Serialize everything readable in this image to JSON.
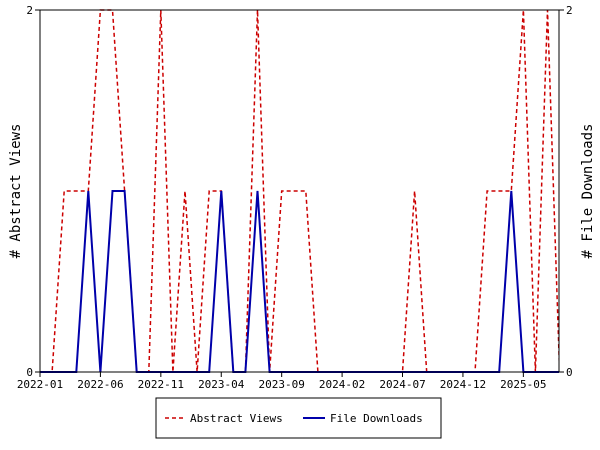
{
  "chart_data": {
    "type": "line",
    "x_ticks": [
      "2022-01",
      "2022-06",
      "2022-11",
      "2023-04",
      "2023-09",
      "2024-02",
      "2024-07",
      "2024-12",
      "2025-05"
    ],
    "y_left": {
      "label": "# Abstract Views",
      "ticks": [
        "0",
        "2"
      ],
      "range": [
        0,
        2
      ]
    },
    "y_right": {
      "label": "# File Downloads",
      "ticks": [
        "0",
        "2"
      ],
      "range": [
        0,
        2
      ]
    },
    "x_range": [
      "2022-01",
      "2025-07"
    ],
    "grid": false,
    "legend_position": "bottom",
    "series": [
      {
        "name": "Abstract Views",
        "color": "#cc0000",
        "dash": "dashed",
        "points": [
          [
            "2022-01",
            0
          ],
          [
            "2022-02",
            0
          ],
          [
            "2022-03",
            1
          ],
          [
            "2022-04",
            1
          ],
          [
            "2022-05",
            1
          ],
          [
            "2022-06",
            2
          ],
          [
            "2022-07",
            2
          ],
          [
            "2022-08",
            1
          ],
          [
            "2022-09",
            0
          ],
          [
            "2022-10",
            0
          ],
          [
            "2022-11",
            2
          ],
          [
            "2022-12",
            0
          ],
          [
            "2023-01",
            1
          ],
          [
            "2023-02",
            0
          ],
          [
            "2023-03",
            1
          ],
          [
            "2023-04",
            1
          ],
          [
            "2023-05",
            0
          ],
          [
            "2023-06",
            0
          ],
          [
            "2023-07",
            2
          ],
          [
            "2023-08",
            0
          ],
          [
            "2023-09",
            1
          ],
          [
            "2023-10",
            1
          ],
          [
            "2023-11",
            1
          ],
          [
            "2023-12",
            0
          ],
          [
            "2024-01",
            0
          ],
          [
            "2024-02",
            0
          ],
          [
            "2024-03",
            0
          ],
          [
            "2024-04",
            0
          ],
          [
            "2024-05",
            0
          ],
          [
            "2024-06",
            0
          ],
          [
            "2024-07",
            0
          ],
          [
            "2024-08",
            1
          ],
          [
            "2024-09",
            0
          ],
          [
            "2024-10",
            0
          ],
          [
            "2024-11",
            0
          ],
          [
            "2024-12",
            0
          ],
          [
            "2025-01",
            0
          ],
          [
            "2025-02",
            1
          ],
          [
            "2025-03",
            1
          ],
          [
            "2025-04",
            1
          ],
          [
            "2025-05",
            2
          ],
          [
            "2025-06",
            0
          ],
          [
            "2025-07",
            2
          ],
          [
            "2025-08",
            0
          ]
        ]
      },
      {
        "name": "File Downloads",
        "color": "#0000aa",
        "dash": "solid",
        "points": [
          [
            "2022-01",
            0
          ],
          [
            "2022-02",
            0
          ],
          [
            "2022-03",
            0
          ],
          [
            "2022-04",
            0
          ],
          [
            "2022-05",
            1
          ],
          [
            "2022-06",
            0
          ],
          [
            "2022-07",
            1
          ],
          [
            "2022-08",
            1
          ],
          [
            "2022-09",
            0
          ],
          [
            "2022-10",
            0
          ],
          [
            "2022-11",
            0
          ],
          [
            "2022-12",
            0
          ],
          [
            "2023-01",
            0
          ],
          [
            "2023-02",
            0
          ],
          [
            "2023-03",
            0
          ],
          [
            "2023-04",
            1
          ],
          [
            "2023-05",
            0
          ],
          [
            "2023-06",
            0
          ],
          [
            "2023-07",
            1
          ],
          [
            "2023-08",
            0
          ],
          [
            "2023-09",
            0
          ],
          [
            "2023-10",
            0
          ],
          [
            "2023-11",
            0
          ],
          [
            "2023-12",
            0
          ],
          [
            "2024-01",
            0
          ],
          [
            "2024-02",
            0
          ],
          [
            "2024-03",
            0
          ],
          [
            "2024-04",
            0
          ],
          [
            "2024-05",
            0
          ],
          [
            "2024-06",
            0
          ],
          [
            "2024-07",
            0
          ],
          [
            "2024-08",
            0
          ],
          [
            "2024-09",
            0
          ],
          [
            "2024-10",
            0
          ],
          [
            "2024-11",
            0
          ],
          [
            "2024-12",
            0
          ],
          [
            "2025-01",
            0
          ],
          [
            "2025-02",
            0
          ],
          [
            "2025-03",
            0
          ],
          [
            "2025-04",
            1
          ],
          [
            "2025-05",
            0
          ],
          [
            "2025-06",
            0
          ],
          [
            "2025-07",
            0
          ],
          [
            "2025-08",
            0
          ]
        ]
      }
    ]
  }
}
